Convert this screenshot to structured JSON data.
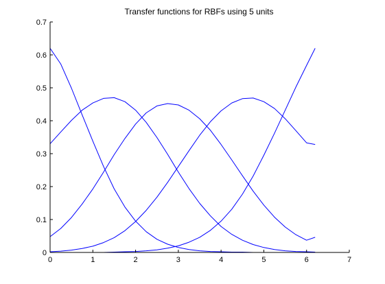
{
  "chart_data": {
    "type": "line",
    "title": "Transfer functions for RBFs using 5 units",
    "xlabel": "",
    "ylabel": "",
    "xlim": [
      0,
      7
    ],
    "ylim": [
      0,
      0.7
    ],
    "xticks": [
      "0",
      "1",
      "2",
      "3",
      "4",
      "5",
      "6",
      "7"
    ],
    "yticks": [
      "0",
      "0.1",
      "0.2",
      "0.3",
      "0.4",
      "0.5",
      "0.6",
      "0.7"
    ],
    "grid": false,
    "legend": "none",
    "line_color": "#0000ff",
    "x": [
      0,
      0.25,
      0.5,
      0.75,
      1,
      1.25,
      1.5,
      1.75,
      2,
      2.25,
      2.5,
      2.75,
      3,
      3.25,
      3.5,
      3.75,
      4,
      4.25,
      4.5,
      4.75,
      5,
      5.25,
      5.5,
      5.75,
      6,
      6.2
    ],
    "series": [
      {
        "values": [
          0.62,
          0.572,
          0.499,
          0.418,
          0.338,
          0.261,
          0.193,
          0.138,
          0.095,
          0.063,
          0.04,
          0.025,
          0.015,
          0.009,
          0.005,
          0.003,
          0.002,
          0.001,
          0.001,
          0,
          0,
          0,
          0,
          0,
          0,
          0
        ]
      },
      {
        "values": [
          0.33,
          0.366,
          0.401,
          0.432,
          0.454,
          0.468,
          0.47,
          0.458,
          0.432,
          0.395,
          0.349,
          0.298,
          0.244,
          0.194,
          0.149,
          0.111,
          0.079,
          0.055,
          0.037,
          0.024,
          0.015,
          0.009,
          0.005,
          0.003,
          0.002,
          0.001
        ]
      },
      {
        "values": [
          0.048,
          0.073,
          0.106,
          0.147,
          0.193,
          0.244,
          0.297,
          0.346,
          0.39,
          0.424,
          0.445,
          0.452,
          0.448,
          0.432,
          0.406,
          0.371,
          0.328,
          0.281,
          0.233,
          0.186,
          0.144,
          0.107,
          0.077,
          0.054,
          0.037,
          0.046
        ]
      },
      {
        "values": [
          0.002,
          0.004,
          0.007,
          0.012,
          0.019,
          0.03,
          0.045,
          0.066,
          0.094,
          0.128,
          0.168,
          0.213,
          0.261,
          0.309,
          0.356,
          0.397,
          0.43,
          0.454,
          0.467,
          0.469,
          0.458,
          0.437,
          0.406,
          0.37,
          0.333,
          0.328
        ]
      },
      {
        "values": [
          0,
          0,
          0,
          0,
          0,
          0,
          0.001,
          0.002,
          0.003,
          0.005,
          0.008,
          0.013,
          0.02,
          0.031,
          0.046,
          0.067,
          0.095,
          0.131,
          0.177,
          0.232,
          0.295,
          0.362,
          0.432,
          0.502,
          0.568,
          0.62
        ]
      }
    ]
  }
}
